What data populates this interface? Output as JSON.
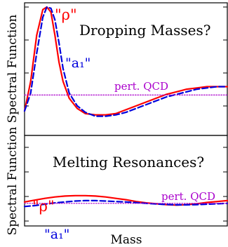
{
  "figure": {
    "xlabel": "Mass",
    "colors": {
      "rho": "#ff0000",
      "a1": "#0000dd",
      "pqcd": "#aa00cc",
      "frame": "#000000"
    }
  },
  "chart_data": [
    {
      "type": "line",
      "title": "Dropping Masses?",
      "xlabel": "",
      "ylabel": "Spectral Function",
      "xlim": [
        0,
        1
      ],
      "ylim": [
        0,
        1
      ],
      "grid": false,
      "series": [
        {
          "name": "\"ρ\"",
          "style": "solid",
          "color": "#ff0000",
          "x": [
            0.0,
            0.03,
            0.06,
            0.09,
            0.11,
            0.13,
            0.15,
            0.17,
            0.19,
            0.22,
            0.26,
            0.3,
            0.35,
            0.4,
            0.45,
            0.5,
            0.55,
            0.6,
            0.65,
            0.7,
            0.75,
            0.8,
            0.85,
            0.9,
            0.95,
            1.0
          ],
          "y": [
            0.19,
            0.42,
            0.78,
            0.98,
            1.0,
            0.96,
            0.78,
            0.57,
            0.42,
            0.29,
            0.21,
            0.17,
            0.16,
            0.16,
            0.17,
            0.2,
            0.23,
            0.26,
            0.29,
            0.32,
            0.34,
            0.36,
            0.37,
            0.38,
            0.38,
            0.38
          ]
        },
        {
          "name": "\"a₁\"",
          "style": "dashed",
          "color": "#0000dd",
          "x": [
            0.0,
            0.03,
            0.06,
            0.09,
            0.11,
            0.13,
            0.15,
            0.17,
            0.19,
            0.22,
            0.26,
            0.3,
            0.35,
            0.4,
            0.45,
            0.5,
            0.55,
            0.6,
            0.65,
            0.7,
            0.75,
            0.8,
            0.85,
            0.9,
            0.95,
            1.0
          ],
          "y": [
            0.19,
            0.33,
            0.64,
            0.92,
            1.0,
            0.99,
            0.9,
            0.72,
            0.52,
            0.33,
            0.23,
            0.18,
            0.15,
            0.15,
            0.16,
            0.18,
            0.21,
            0.24,
            0.27,
            0.3,
            0.32,
            0.34,
            0.36,
            0.37,
            0.38,
            0.38
          ]
        },
        {
          "name": "pert. QCD",
          "style": "dotted",
          "color": "#aa00cc",
          "x": [
            0.0,
            1.0
          ],
          "y": [
            0.315,
            0.315
          ]
        }
      ],
      "annotations": [
        {
          "text": "\"ρ\"",
          "color": "#ff0000"
        },
        {
          "text": "\"a₁\"",
          "color": "#0000dd"
        },
        {
          "text": "pert. QCD",
          "color": "#aa00cc"
        },
        {
          "text": "Dropping Masses?",
          "color": "#000000"
        }
      ]
    },
    {
      "type": "line",
      "title": "Melting Resonances?",
      "xlabel": "Mass",
      "ylabel": "Spectral Function",
      "xlim": [
        0,
        1
      ],
      "ylim": [
        0,
        1
      ],
      "grid": false,
      "series": [
        {
          "name": "\"ρ\"",
          "style": "solid",
          "color": "#ff0000",
          "x": [
            0.0,
            0.05,
            0.1,
            0.15,
            0.2,
            0.25,
            0.3,
            0.35,
            0.4,
            0.45,
            0.5,
            0.55,
            0.6,
            0.65,
            0.7,
            0.75,
            0.8,
            0.85,
            0.9,
            0.95,
            1.0
          ],
          "y": [
            0.265,
            0.285,
            0.305,
            0.32,
            0.33,
            0.335,
            0.335,
            0.33,
            0.32,
            0.305,
            0.29,
            0.27,
            0.255,
            0.245,
            0.235,
            0.23,
            0.235,
            0.245,
            0.26,
            0.27,
            0.28
          ]
        },
        {
          "name": "\"a₁\"",
          "style": "dashed",
          "color": "#0000dd",
          "x": [
            0.0,
            0.05,
            0.1,
            0.15,
            0.2,
            0.25,
            0.3,
            0.35,
            0.4,
            0.45,
            0.5,
            0.55,
            0.6,
            0.65,
            0.7,
            0.75,
            0.8,
            0.85,
            0.9,
            0.95,
            1.0
          ],
          "y": [
            0.215,
            0.225,
            0.24,
            0.255,
            0.265,
            0.275,
            0.28,
            0.28,
            0.275,
            0.27,
            0.265,
            0.258,
            0.25,
            0.243,
            0.237,
            0.233,
            0.233,
            0.236,
            0.24,
            0.245,
            0.25
          ]
        },
        {
          "name": "pert. QCD",
          "style": "dotted",
          "color": "#aa00cc",
          "x": [
            0.0,
            1.0
          ],
          "y": [
            0.25,
            0.25
          ]
        }
      ],
      "annotations": [
        {
          "text": "\"ρ\"",
          "color": "#ff0000"
        },
        {
          "text": "\"a₁\"",
          "color": "#0000dd"
        },
        {
          "text": "pert. QCD",
          "color": "#aa00cc"
        },
        {
          "text": "Melting Resonances?",
          "color": "#000000"
        }
      ]
    }
  ]
}
